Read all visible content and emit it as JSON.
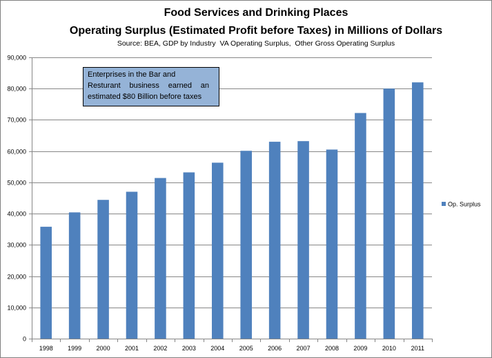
{
  "chart_data": {
    "type": "bar",
    "title": "Food Services and Drinking Places",
    "subtitle": "Operating Surplus (Estimated Profit before Taxes) in Millions of Dollars",
    "source": "Source: BEA, GDP by Industry  VA Operating Surplus,  Other Gross Operating Surplus",
    "categories": [
      "1998",
      "1999",
      "2000",
      "2001",
      "2002",
      "2003",
      "2004",
      "2005",
      "2006",
      "2007",
      "2008",
      "2009",
      "2010",
      "2011"
    ],
    "series": [
      {
        "name": "Op. Surplus",
        "values": [
          35800,
          40400,
          44400,
          47000,
          51400,
          53200,
          56300,
          60100,
          63000,
          63200,
          60500,
          72200,
          80000,
          82000
        ]
      }
    ],
    "ylim": [
      0,
      90000
    ],
    "yticks": [
      0,
      10000,
      20000,
      30000,
      40000,
      50000,
      60000,
      70000,
      80000,
      90000
    ],
    "ytick_labels": [
      "0",
      "10,000",
      "20,000",
      "30,000",
      "40,000",
      "50,000",
      "60,000",
      "70,000",
      "80,000",
      "90,000"
    ],
    "grid": true,
    "legend": "right",
    "annotation_lines": [
      "Enterprises in the Bar and",
      "Resturant business earned an",
      "estimated $80 Billion before taxes"
    ],
    "colors": {
      "bar": "#4f81bd",
      "annotation_fill": "#95b3d7",
      "gridline": "#868686",
      "axis": "#868686"
    }
  }
}
